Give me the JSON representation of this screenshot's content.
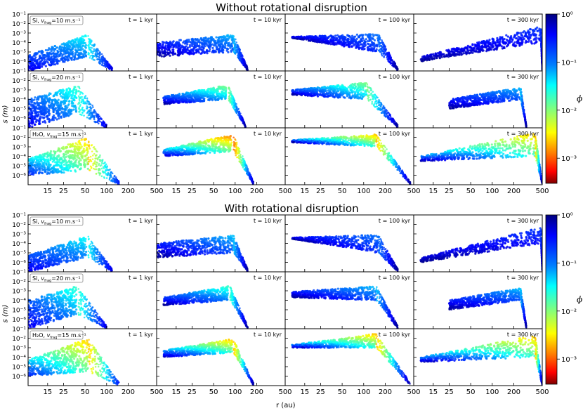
{
  "figure": {
    "title_top": "Without rotational disruption",
    "title_bottom": "With rotational disruption",
    "ylabel": "s (m)",
    "xlabel": "r (au)",
    "colorbar_label": "ϕ"
  },
  "chart_data": {
    "type": "scatter",
    "panel_grid": {
      "blocks": 2,
      "rows_per_block": 3,
      "cols": 4
    },
    "blocks": [
      {
        "title": "Without rotational disruption",
        "rotational_disruption": false
      },
      {
        "title": "With rotational disruption",
        "rotational_disruption": true
      }
    ],
    "rows": [
      {
        "species": "Si",
        "vfrag": "10 m.s⁻¹",
        "label_prefix": "Si, ",
        "label_v": "v",
        "label_sub": "frag",
        "label_suffix": "=10 m.s⁻¹"
      },
      {
        "species": "Si",
        "vfrag": "20 m.s⁻¹",
        "label_prefix": "Si, ",
        "label_v": "v",
        "label_sub": "frag",
        "label_suffix": "=20 m.s⁻¹"
      },
      {
        "species": "H2O",
        "vfrag": "15 m.s⁻¹",
        "label_prefix": "H₂O, ",
        "label_v": "v",
        "label_sub": "frag",
        "label_suffix": "=15 m.s⁻¹"
      }
    ],
    "columns": [
      {
        "time_label": "t = 1 kyr"
      },
      {
        "time_label": "t = 10 kyr"
      },
      {
        "time_label": "t = 100 kyr"
      },
      {
        "time_label": "t = 300 kyr"
      }
    ],
    "x_axis": {
      "label": "r (au)",
      "scale": "log",
      "range": [
        8,
        500
      ],
      "ticks": [
        15,
        25,
        50,
        100,
        200,
        500
      ],
      "tick_labels": [
        "15",
        "25",
        "50",
        "100",
        "200",
        "500"
      ]
    },
    "y_axis": {
      "label": "s (m)",
      "scale": "log",
      "range": [
        1e-07,
        0.1
      ],
      "tick_labels_row1": [
        "10⁻¹",
        "10⁻²",
        "10⁻³",
        "10⁻⁴",
        "10⁻⁵",
        "10⁻⁶"
      ],
      "tick_labels_row2": [
        "10⁻¹",
        "10⁻²",
        "10⁻³",
        "10⁻⁴",
        "10⁻⁵",
        "10⁻⁶"
      ],
      "tick_labels_row3": [
        "10⁻¹",
        "10⁻²",
        "10⁻³",
        "10⁻⁴",
        "10⁻⁵",
        "10⁻⁶"
      ]
    },
    "colorbar": {
      "label": "ϕ",
      "scale": "log",
      "range": [
        0.0003,
        1
      ],
      "colormap": "jet_r",
      "tick_labels": [
        "10⁰",
        "10⁻¹",
        "10⁻²",
        "10⁻³"
      ]
    },
    "panel_clouds": [
      [
        [
          {
            "r": [
              8,
              52
            ],
            "s_top": [
              5e-06,
              0.0006
            ],
            "s_bot": [
              1e-07,
              3e-06
            ],
            "phi": [
              0.5,
              0.03
            ],
            "decay_r": [
              55,
              120
            ]
          },
          {
            "r": [
              8,
              95
            ],
            "s_top": [
              0.0001,
              0.0007
            ],
            "s_bot": [
              3e-06,
              1e-05
            ],
            "phi": [
              0.9,
              0.05
            ],
            "decay_r": [
              95,
              150
            ]
          },
          {
            "r": [
              10,
              160
            ],
            "s_top": [
              0.0004,
              0.0008
            ],
            "s_bot": [
              0.0003,
              1e-05
            ],
            "phi": [
              0.9,
              0.1
            ],
            "decay_r": [
              160,
              300
            ]
          },
          {
            "r": [
              10,
              480
            ],
            "s_top": [
              3e-06,
              0.005
            ],
            "s_bot": [
              1e-06,
              0.0001
            ],
            "phi": [
              0.9,
              0.2
            ],
            "decay_r": [
              480,
              500
            ]
          }
        ],
        [
          {
            "r": [
              8,
              38
            ],
            "s_top": [
              0.0001,
              0.003
            ],
            "s_bot": [
              1e-07,
              3e-06
            ],
            "phi": [
              0.5,
              0.02
            ],
            "decay_r": [
              40,
              100
            ]
          },
          {
            "r": [
              10,
              75
            ],
            "s_top": [
              0.0002,
              0.003
            ],
            "s_bot": [
              3e-05,
              0.0001
            ],
            "phi": [
              0.9,
              0.01
            ],
            "decay_r": [
              80,
              140
            ]
          },
          {
            "r": [
              10,
              110
            ],
            "s_top": [
              0.001,
              0.006
            ],
            "s_bot": [
              0.0003,
              0.0001
            ],
            "phi": [
              0.9,
              0.01
            ],
            "decay_r": [
              110,
              300
            ]
          },
          {
            "r": [
              25,
              250
            ],
            "s_top": [
              0.0001,
              0.002
            ],
            "s_bot": [
              1e-05,
              0.0001
            ],
            "phi": [
              0.9,
              0.05
            ],
            "decay_r": [
              250,
              300
            ]
          }
        ],
        [
          {
            "r": [
              8,
              55
            ],
            "s_top": [
              5e-05,
              0.01
            ],
            "s_bot": [
              1e-06,
              3e-06
            ],
            "phi": [
              0.3,
              0.002
            ],
            "decay_r": [
              55,
              150
            ]
          },
          {
            "r": [
              10,
              90
            ],
            "s_top": [
              0.0005,
              0.02
            ],
            "s_bot": [
              0.0001,
              0.0003
            ],
            "phi": [
              0.7,
              0.001
            ],
            "decay_r": [
              95,
              180
            ]
          },
          {
            "r": [
              10,
              150
            ],
            "s_top": [
              0.005,
              0.02
            ],
            "s_bot": [
              0.003,
              0.001
            ],
            "phi": [
              0.9,
              0.002
            ],
            "decay_r": [
              150,
              450
            ]
          },
          {
            "r": [
              10,
              400
            ],
            "s_top": [
              0.0001,
              0.03
            ],
            "s_bot": [
              3e-05,
              0.0001
            ],
            "phi": [
              0.9,
              0.002
            ],
            "decay_r": [
              400,
              500
            ]
          }
        ]
      ],
      [
        [
          {
            "r": [
              8,
              52
            ],
            "s_top": [
              5e-06,
              0.0006
            ],
            "s_bot": [
              1e-07,
              3e-06
            ],
            "phi": [
              0.5,
              0.03
            ],
            "decay_r": [
              55,
              120
            ]
          },
          {
            "r": [
              8,
              95
            ],
            "s_top": [
              0.0001,
              0.0007
            ],
            "s_bot": [
              3e-06,
              1e-05
            ],
            "phi": [
              0.9,
              0.05
            ],
            "decay_r": [
              95,
              150
            ]
          },
          {
            "r": [
              10,
              160
            ],
            "s_top": [
              0.0004,
              0.0008
            ],
            "s_bot": [
              0.0003,
              1e-05
            ],
            "phi": [
              0.9,
              0.1
            ],
            "decay_r": [
              160,
              300
            ]
          },
          {
            "r": [
              10,
              480
            ],
            "s_top": [
              3e-06,
              0.005
            ],
            "s_bot": [
              1e-06,
              0.0001
            ],
            "phi": [
              0.9,
              0.2
            ],
            "decay_r": [
              480,
              500
            ]
          }
        ],
        [
          {
            "r": [
              8,
              38
            ],
            "s_top": [
              0.0001,
              0.003
            ],
            "s_bot": [
              1e-07,
              3e-06
            ],
            "phi": [
              0.5,
              0.02
            ],
            "decay_r": [
              40,
              100
            ]
          },
          {
            "r": [
              10,
              80
            ],
            "s_top": [
              0.0002,
              0.003
            ],
            "s_bot": [
              3e-05,
              0.0001
            ],
            "phi": [
              0.9,
              0.02
            ],
            "decay_r": [
              85,
              150
            ]
          },
          {
            "r": [
              10,
              150
            ],
            "s_top": [
              0.0008,
              0.003
            ],
            "s_bot": [
              0.0002,
              0.0001
            ],
            "phi": [
              0.9,
              0.05
            ],
            "decay_r": [
              150,
              300
            ]
          },
          {
            "r": [
              25,
              250
            ],
            "s_top": [
              0.0001,
              0.002
            ],
            "s_bot": [
              1e-05,
              0.0001
            ],
            "phi": [
              0.9,
              0.05
            ],
            "decay_r": [
              250,
              300
            ]
          }
        ],
        [
          {
            "r": [
              8,
              55
            ],
            "s_top": [
              5e-05,
              0.01
            ],
            "s_bot": [
              1e-06,
              3e-06
            ],
            "phi": [
              0.3,
              0.002
            ],
            "decay_r": [
              55,
              150
            ]
          },
          {
            "r": [
              10,
              90
            ],
            "s_top": [
              0.0005,
              0.008
            ],
            "s_bot": [
              0.0001,
              0.0003
            ],
            "phi": [
              0.8,
              0.002
            ],
            "decay_r": [
              95,
              180
            ]
          },
          {
            "r": [
              10,
              150
            ],
            "s_top": [
              0.002,
              0.03
            ],
            "s_bot": [
              0.001,
              0.001
            ],
            "phi": [
              0.9,
              0.002
            ],
            "decay_r": [
              150,
              450
            ]
          },
          {
            "r": [
              10,
              400
            ],
            "s_top": [
              0.0001,
              0.02
            ],
            "s_bot": [
              3e-05,
              0.0001
            ],
            "phi": [
              0.9,
              0.002
            ],
            "decay_r": [
              400,
              500
            ]
          }
        ]
      ]
    ]
  }
}
